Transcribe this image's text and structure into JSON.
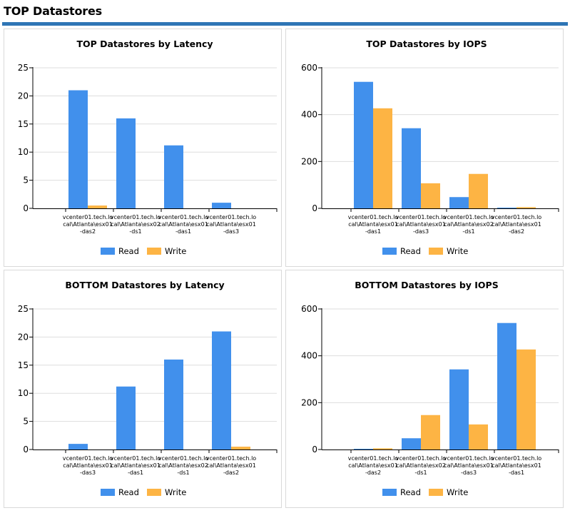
{
  "page": {
    "title": "TOP Datastores"
  },
  "colors": {
    "header_bar": "#2e75b5",
    "read": "#4190ec",
    "write": "#fdb444",
    "grid": "#dddddd"
  },
  "chart_data": [
    {
      "id": "top-latency",
      "type": "bar",
      "title": "TOP Datastores by Latency",
      "categories": [
        [
          "vcenter01.tech.lo",
          "cal\\Atlanta\\esx01",
          "-das2"
        ],
        [
          "vcenter01.tech.lo",
          "cal\\Atlanta\\esx02",
          "-ds1"
        ],
        [
          "vcenter01.tech.lo",
          "cal\\Atlanta\\esx01",
          "-das1"
        ],
        [
          "vcenter01.tech.lo",
          "cal\\Atlanta\\esx01",
          "-das3"
        ]
      ],
      "series": [
        {
          "name": "Read",
          "values": [
            21,
            16,
            11.2,
            1
          ]
        },
        {
          "name": "Write",
          "values": [
            0.5,
            0,
            0,
            0
          ]
        }
      ],
      "yticks": [
        0,
        5,
        10,
        15,
        20,
        25
      ],
      "ylim": [
        0,
        25
      ],
      "grid": true,
      "legend_position": "bottom"
    },
    {
      "id": "top-iops",
      "type": "bar",
      "title": "TOP Datastores by IOPS",
      "categories": [
        [
          "vcenter01.tech.lo",
          "cal\\Atlanta\\esx01",
          "-das1"
        ],
        [
          "vcenter01.tech.lo",
          "cal\\Atlanta\\esx01",
          "-das3"
        ],
        [
          "vcenter01.tech.lo",
          "cal\\Atlanta\\esx02",
          "-ds1"
        ],
        [
          "vcenter01.tech.lo",
          "cal\\Atlanta\\esx01",
          "-das2"
        ]
      ],
      "series": [
        {
          "name": "Read",
          "values": [
            540,
            342,
            48,
            3
          ]
        },
        {
          "name": "Write",
          "values": [
            427,
            107,
            147,
            5
          ]
        }
      ],
      "yticks": [
        0,
        200,
        400,
        600
      ],
      "ylim": [
        0,
        600
      ],
      "grid": true,
      "legend_position": "bottom"
    },
    {
      "id": "bottom-latency",
      "type": "bar",
      "title": "BOTTOM Datastores by Latency",
      "categories": [
        [
          "vcenter01.tech.lo",
          "cal\\Atlanta\\esx01",
          "-das3"
        ],
        [
          "vcenter01.tech.lo",
          "cal\\Atlanta\\esx01",
          "-das1"
        ],
        [
          "vcenter01.tech.lo",
          "cal\\Atlanta\\esx02",
          "-ds1"
        ],
        [
          "vcenter01.tech.lo",
          "cal\\Atlanta\\esx01",
          "-das2"
        ]
      ],
      "series": [
        {
          "name": "Read",
          "values": [
            1,
            11.2,
            16,
            21
          ]
        },
        {
          "name": "Write",
          "values": [
            0,
            0,
            0,
            0.5
          ]
        }
      ],
      "yticks": [
        0,
        5,
        10,
        15,
        20,
        25
      ],
      "ylim": [
        0,
        25
      ],
      "grid": true,
      "legend_position": "bottom"
    },
    {
      "id": "bottom-iops",
      "type": "bar",
      "title": "BOTTOM Datastores by IOPS",
      "categories": [
        [
          "vcenter01.tech.lo",
          "cal\\Atlanta\\esx01",
          "-das2"
        ],
        [
          "vcenter01.tech.lo",
          "cal\\Atlanta\\esx02",
          "-ds1"
        ],
        [
          "vcenter01.tech.lo",
          "cal\\Atlanta\\esx01",
          "-das3"
        ],
        [
          "vcenter01.tech.lo",
          "cal\\Atlanta\\esx01",
          "-das1"
        ]
      ],
      "series": [
        {
          "name": "Read",
          "values": [
            3,
            48,
            342,
            540
          ]
        },
        {
          "name": "Write",
          "values": [
            5,
            147,
            107,
            427
          ]
        }
      ],
      "yticks": [
        0,
        200,
        400,
        600
      ],
      "ylim": [
        0,
        600
      ],
      "grid": true,
      "legend_position": "bottom"
    }
  ]
}
